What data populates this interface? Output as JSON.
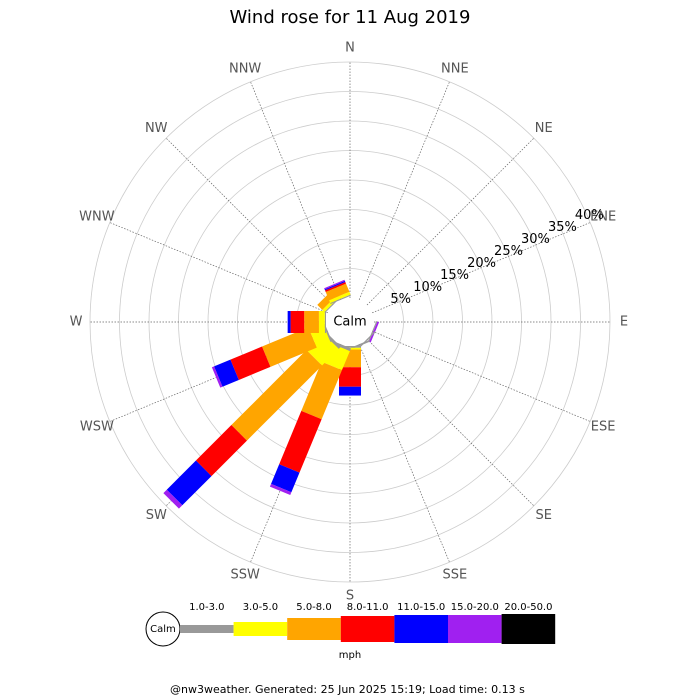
{
  "chart_data": {
    "type": "wind_rose",
    "title": "Wind rose for 11 Aug 2019",
    "directions": [
      "N",
      "NNE",
      "NE",
      "ENE",
      "E",
      "ESE",
      "SE",
      "SSE",
      "S",
      "SSW",
      "SW",
      "WSW",
      "W",
      "WNW",
      "NW",
      "NNW"
    ],
    "calm_label": "Calm",
    "unit_label": "mph",
    "footer": "@nw3weather. Generated: 25 Jun 2025 15:19; Load time: 0.13 s",
    "rlim": [
      0,
      40
    ],
    "rticks": [
      {
        "value": 5,
        "label": "5%"
      },
      {
        "value": 10,
        "label": "10%"
      },
      {
        "value": 15,
        "label": "15%"
      },
      {
        "value": 20,
        "label": "20%"
      },
      {
        "value": 25,
        "label": "25%"
      },
      {
        "value": 30,
        "label": "30%"
      },
      {
        "value": 35,
        "label": "35%"
      },
      {
        "value": 40,
        "label": "40%"
      }
    ],
    "series": [
      {
        "name": "1.0-3.0",
        "color": "#999999",
        "values": [
          0,
          0,
          0,
          0,
          0,
          0.2,
          0.2,
          0.3,
          0.3,
          0.5,
          0.5,
          0.3,
          0.2,
          0,
          0.2,
          0.2
        ]
      },
      {
        "name": "3.0-5.0",
        "color": "#ffff00",
        "values": [
          0,
          0,
          0,
          0,
          0,
          0,
          0,
          0,
          0.3,
          3.5,
          4,
          2.5,
          1,
          0,
          0.5,
          0.5
        ]
      },
      {
        "name": "5.0-8.0",
        "color": "#ffa500",
        "values": [
          0,
          0,
          0,
          0,
          0,
          0,
          0,
          0,
          3,
          9,
          18,
          8.5,
          2.5,
          0,
          1.2,
          1.5
        ]
      },
      {
        "name": "8.0-11.0",
        "color": "#ff0000",
        "values": [
          0,
          0,
          0,
          0,
          0,
          0,
          0,
          0,
          3.3,
          9.8,
          8.5,
          5.8,
          2.3,
          0,
          0,
          0.3
        ]
      },
      {
        "name": "11.0-15.0",
        "color": "#0000ff",
        "values": [
          0,
          0,
          0,
          0,
          0,
          0,
          0,
          0,
          1.5,
          3.6,
          7,
          3,
          0.5,
          0,
          0,
          0.2
        ]
      },
      {
        "name": "15.0-20.0",
        "color": "#a020f0",
        "values": [
          0,
          0,
          0,
          0,
          0,
          0.3,
          0,
          0,
          0,
          0.5,
          0.8,
          0.4,
          0,
          0,
          0,
          0.2
        ]
      },
      {
        "name": "20.0-50.0",
        "color": "#000000",
        "values": [
          0,
          0,
          0,
          0,
          0,
          0,
          0,
          0,
          0,
          0,
          0,
          0,
          0,
          0,
          0,
          0
        ]
      }
    ]
  }
}
